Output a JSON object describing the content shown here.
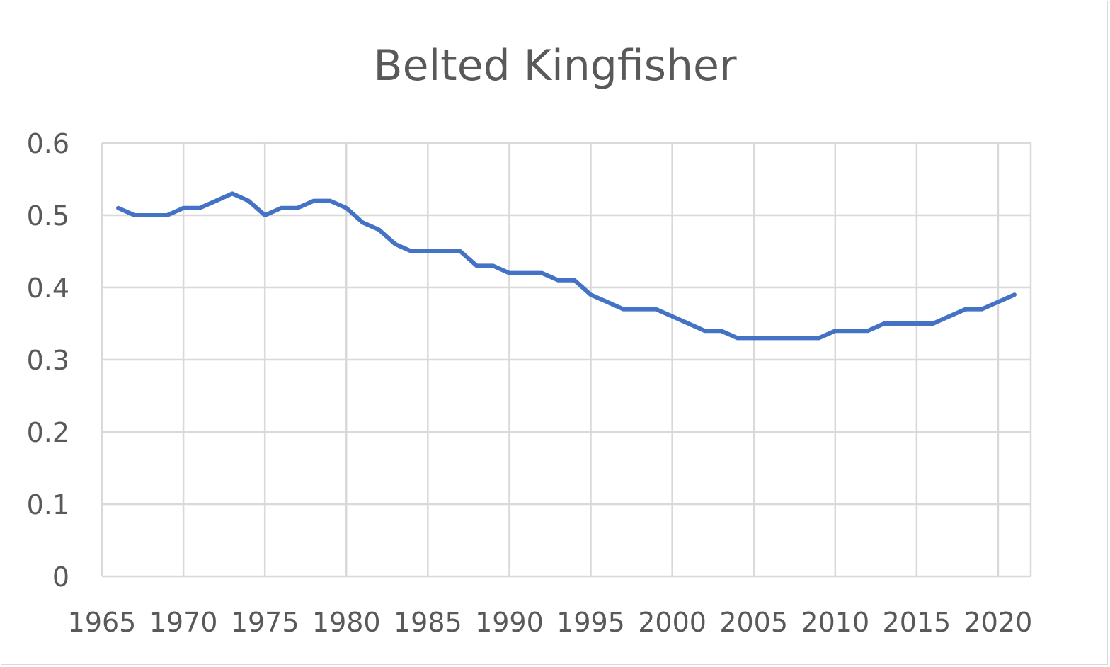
{
  "chart_data": {
    "type": "line",
    "title": "Belted Kingfisher",
    "xlabel": "",
    "ylabel": "",
    "xlim": [
      1965,
      2022
    ],
    "ylim": [
      0,
      0.6
    ],
    "x_ticks": [
      "1965",
      "1970",
      "1975",
      "1980",
      "1985",
      "1990",
      "1995",
      "2000",
      "2005",
      "2010",
      "2015",
      "2020"
    ],
    "y_ticks": [
      "0",
      "0.1",
      "0.2",
      "0.3",
      "0.4",
      "0.5",
      "0.6"
    ],
    "grid": true,
    "legend": "none",
    "series": [
      {
        "name": "Belted Kingfisher",
        "color": "#4472C4",
        "x": [
          1966,
          1967,
          1968,
          1969,
          1970,
          1971,
          1972,
          1973,
          1974,
          1975,
          1976,
          1977,
          1978,
          1979,
          1980,
          1981,
          1982,
          1983,
          1984,
          1985,
          1986,
          1987,
          1988,
          1989,
          1990,
          1991,
          1992,
          1993,
          1994,
          1995,
          1996,
          1997,
          1998,
          1999,
          2000,
          2001,
          2002,
          2003,
          2004,
          2005,
          2006,
          2007,
          2008,
          2009,
          2010,
          2011,
          2012,
          2013,
          2014,
          2015,
          2016,
          2017,
          2018,
          2019,
          2020,
          2021
        ],
        "values": [
          0.51,
          0.5,
          0.5,
          0.5,
          0.51,
          0.51,
          0.52,
          0.53,
          0.52,
          0.5,
          0.51,
          0.51,
          0.52,
          0.52,
          0.51,
          0.49,
          0.48,
          0.46,
          0.45,
          0.45,
          0.45,
          0.45,
          0.43,
          0.43,
          0.42,
          0.42,
          0.42,
          0.41,
          0.41,
          0.39,
          0.38,
          0.37,
          0.37,
          0.37,
          0.36,
          0.35,
          0.34,
          0.34,
          0.33,
          0.33,
          0.33,
          0.33,
          0.33,
          0.33,
          0.34,
          0.34,
          0.34,
          0.35,
          0.35,
          0.35,
          0.35,
          0.36,
          0.37,
          0.37,
          0.38,
          0.39
        ]
      }
    ]
  }
}
